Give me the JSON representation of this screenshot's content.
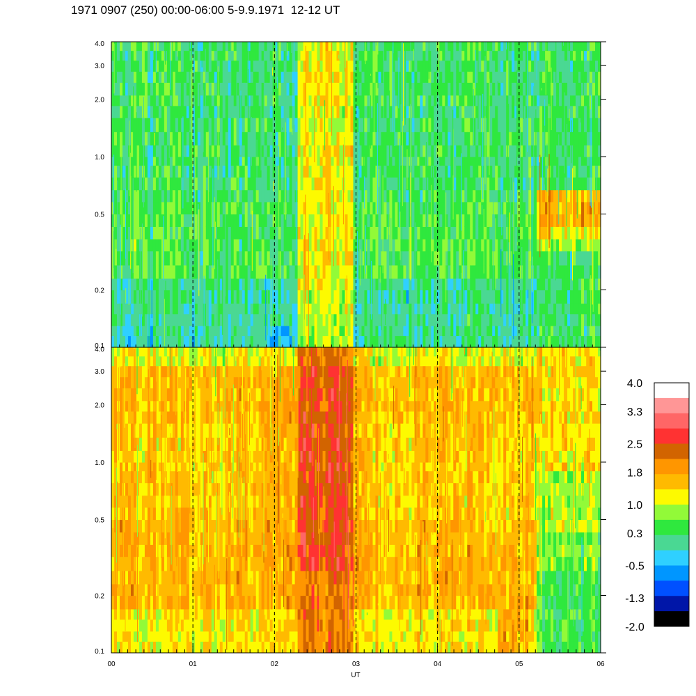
{
  "title": "1971 0907 (250) 00:00-06:00 5-9.9.1971  12-12 UT",
  "colors": {
    "palette": [
      "#000000",
      "#0016a8",
      "#0050ff",
      "#0096ff",
      "#2fd0ff",
      "#4ad893",
      "#2fe83e",
      "#92fa38",
      "#fdfa00",
      "#ffba00",
      "#ff9600",
      "#d26400",
      "#ff3232",
      "#ff6666",
      "#ff9696",
      "#ffffff"
    ]
  },
  "chart_data": [
    {
      "type": "heatmap",
      "panel": "upper",
      "y_scale": "log",
      "ylim": [
        0.1,
        4.0
      ],
      "y_ticks": [
        "0.1",
        "0.2",
        "0.5",
        "1.0",
        "2.0",
        "3.0",
        "4.0"
      ],
      "xlim": [
        "00",
        "06"
      ],
      "x_ticks": [
        "00",
        "01",
        "02",
        "03",
        "04",
        "05",
        "06"
      ],
      "dashed_hour_markers": [
        "01",
        "02",
        "03",
        "04",
        "05"
      ],
      "dominant_level": "0.3",
      "features": [
        {
          "x_range": [
            "02:17",
            "03:00"
          ],
          "level": "1.0",
          "description": ""
        },
        {
          "x_range": [
            "05:12",
            "06:00"
          ],
          "y_range": [
            0.4,
            0.65
          ],
          "level": "1.8"
        }
      ]
    },
    {
      "type": "heatmap",
      "panel": "lower",
      "y_scale": "log",
      "ylim": [
        0.1,
        4.0
      ],
      "y_ticks": [
        "0.1",
        "0.2",
        "0.5",
        "1.0",
        "2.0",
        "3.0",
        "4.0"
      ],
      "xlim": [
        "00",
        "06"
      ],
      "x_ticks": [
        "00",
        "01",
        "02",
        "03",
        "04",
        "05",
        "06"
      ],
      "xlabel": "UT",
      "dashed_hour_markers": [
        "01",
        "02",
        "03",
        "04",
        "05"
      ],
      "dominant_level": "1.8",
      "features": [
        {
          "x_range": [
            "02:17",
            "03:00"
          ],
          "level": "2.5"
        },
        {
          "x_range": [
            "05:12",
            "06:00"
          ],
          "level": "0.3"
        }
      ]
    }
  ],
  "colorbar": {
    "labels": [
      "4.0",
      "3.3",
      "2.5",
      "1.8",
      "1.0",
      "0.3",
      "-0.5",
      "-1.3",
      "-2.0"
    ],
    "range": [
      -2.0,
      4.0
    ]
  },
  "x_axis_label": "UT"
}
